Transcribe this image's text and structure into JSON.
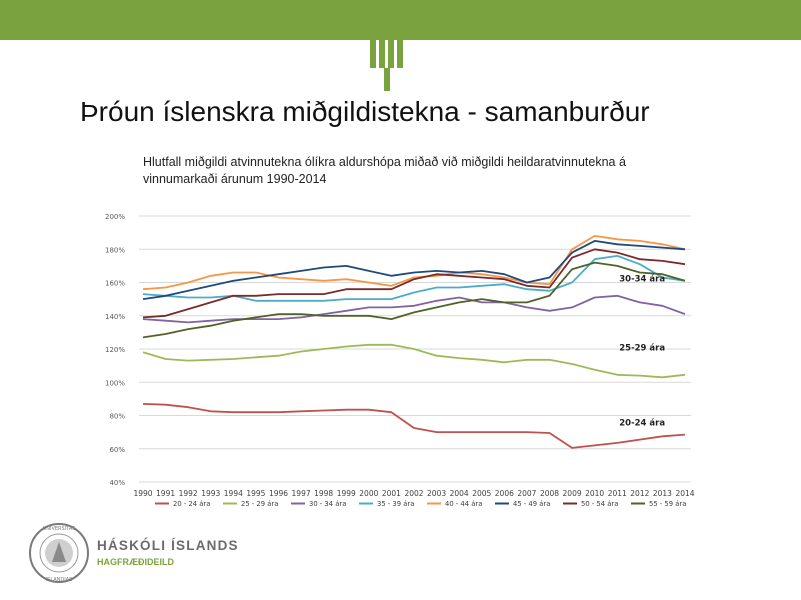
{
  "header": {
    "title": "Þróun íslenskra miðgildistekna - samanburður",
    "subtitle": "Hlutfall miðgildi atvinnutekna ólíkra aldurshópa miðað við miðgildi heildaratvinnutekna á vinnumarkaði árunum 1990-2014"
  },
  "colors": {
    "brand": "#7aa33f"
  },
  "chart_data": {
    "type": "line",
    "title": "",
    "xlabel": "",
    "ylabel": "",
    "ylim": [
      40,
      200
    ],
    "y_ticks": [
      "40%",
      "60%",
      "80%",
      "100%",
      "120%",
      "140%",
      "160%",
      "180%",
      "200%"
    ],
    "categories": [
      "1990",
      "1991",
      "1992",
      "1993",
      "1994",
      "1995",
      "1996",
      "1997",
      "1998",
      "1999",
      "2000",
      "2001",
      "2002",
      "2003",
      "2004",
      "2005",
      "2006",
      "2007",
      "2008",
      "2009",
      "2010",
      "2011",
      "2012",
      "2013",
      "2014"
    ],
    "grid": true,
    "legend": "bottom",
    "annotations": [
      {
        "text": "30-34 ára",
        "series": "30 - 34 ára"
      },
      {
        "text": "25-29 ára",
        "series": "25 - 29 ára"
      },
      {
        "text": "20-24 ára",
        "series": "20 - 24 ára"
      }
    ],
    "series": [
      {
        "name": "20 - 24 ára",
        "color": "#c0504d",
        "values": [
          87,
          86.5,
          85,
          82.5,
          82,
          82,
          82,
          82.5,
          83,
          83.5,
          83.5,
          82,
          72.5,
          70,
          70,
          70,
          70,
          70,
          69.5,
          60.5,
          62,
          63.5,
          65.5,
          67.5,
          68.5
        ]
      },
      {
        "name": "25 - 29 ára",
        "color": "#9bbb59",
        "values": [
          118,
          114,
          113,
          113.5,
          114,
          115,
          116,
          118.5,
          120,
          121.5,
          122.5,
          122.5,
          120,
          116,
          114.5,
          113.5,
          112,
          113.5,
          113.5,
          111,
          107.5,
          104.5,
          104,
          103,
          104.5
        ]
      },
      {
        "name": "30 - 34 ára",
        "color": "#8064a2",
        "values": [
          138,
          137,
          136,
          137,
          138,
          138,
          138,
          139,
          141,
          143,
          145,
          145,
          146,
          149,
          151,
          148,
          148,
          145,
          143,
          145,
          151,
          152,
          148,
          146,
          141
        ]
      },
      {
        "name": "35 - 39 ára",
        "color": "#4bacc6",
        "values": [
          153,
          152,
          151,
          151,
          152,
          149,
          149,
          149,
          149,
          150,
          150,
          150,
          154,
          157,
          157,
          158,
          159,
          156,
          155,
          160,
          174,
          176,
          171,
          163,
          161
        ]
      },
      {
        "name": "40 - 44 ára",
        "color": "#f79646",
        "values": [
          156,
          157,
          160,
          164,
          166,
          166,
          163,
          162,
          161,
          162,
          160,
          158,
          163,
          164,
          166,
          165,
          163,
          160,
          159,
          180,
          188,
          186,
          185,
          183,
          180
        ]
      },
      {
        "name": "45 - 49 ára",
        "color": "#1f497d",
        "values": [
          150,
          152,
          155,
          158,
          161,
          163,
          165,
          167,
          169,
          170,
          167,
          164,
          166,
          167,
          166,
          167,
          165,
          160,
          163,
          178,
          185,
          183,
          182,
          181,
          180
        ]
      },
      {
        "name": "50 - 54 ára",
        "color": "#772c2a",
        "values": [
          139,
          140,
          144,
          148,
          152,
          152,
          153,
          153,
          153,
          156,
          156,
          156,
          162,
          165,
          164,
          163,
          162,
          158,
          157,
          175,
          180,
          178,
          174,
          173,
          171
        ]
      },
      {
        "name": "55 - 59 ára",
        "color": "#4f6228",
        "values": [
          127,
          129,
          132,
          134,
          137,
          139,
          141,
          141,
          140,
          140,
          140,
          138,
          142,
          145,
          148,
          150,
          148,
          148,
          152,
          168,
          172,
          170,
          166,
          165,
          161
        ]
      }
    ]
  },
  "footer": {
    "university_name": "HÁSKÓLI ÍSLANDS",
    "department": "HAGFRÆÐIDEILD"
  }
}
